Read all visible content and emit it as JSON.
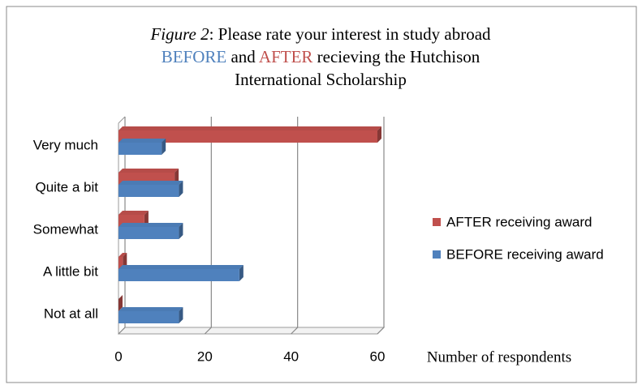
{
  "chart_data": {
    "type": "hbar",
    "title_lines": [
      [
        "Figure 2",
        ": Please rate your interest in study abroad"
      ],
      [
        "BEFORE",
        " and ",
        "AFTER",
        " recieving the Hutchison"
      ],
      [
        "International Scholarship"
      ]
    ],
    "x_label": "Number of respondents",
    "categories": [
      "Very much",
      "Quite a bit",
      "Somewhat",
      "A little bit",
      "Not at all"
    ],
    "series": [
      {
        "name": "AFTER receiving award",
        "color": "#c0504d",
        "values": [
          60,
          13,
          6,
          1,
          0
        ]
      },
      {
        "name": "BEFORE receiving award",
        "color": "#4f81bd",
        "values": [
          10,
          14,
          14,
          28,
          14
        ]
      }
    ],
    "xlim": [
      0,
      60
    ],
    "xticks": [
      0,
      20,
      40,
      60
    ],
    "grid": true,
    "legend": "right"
  }
}
